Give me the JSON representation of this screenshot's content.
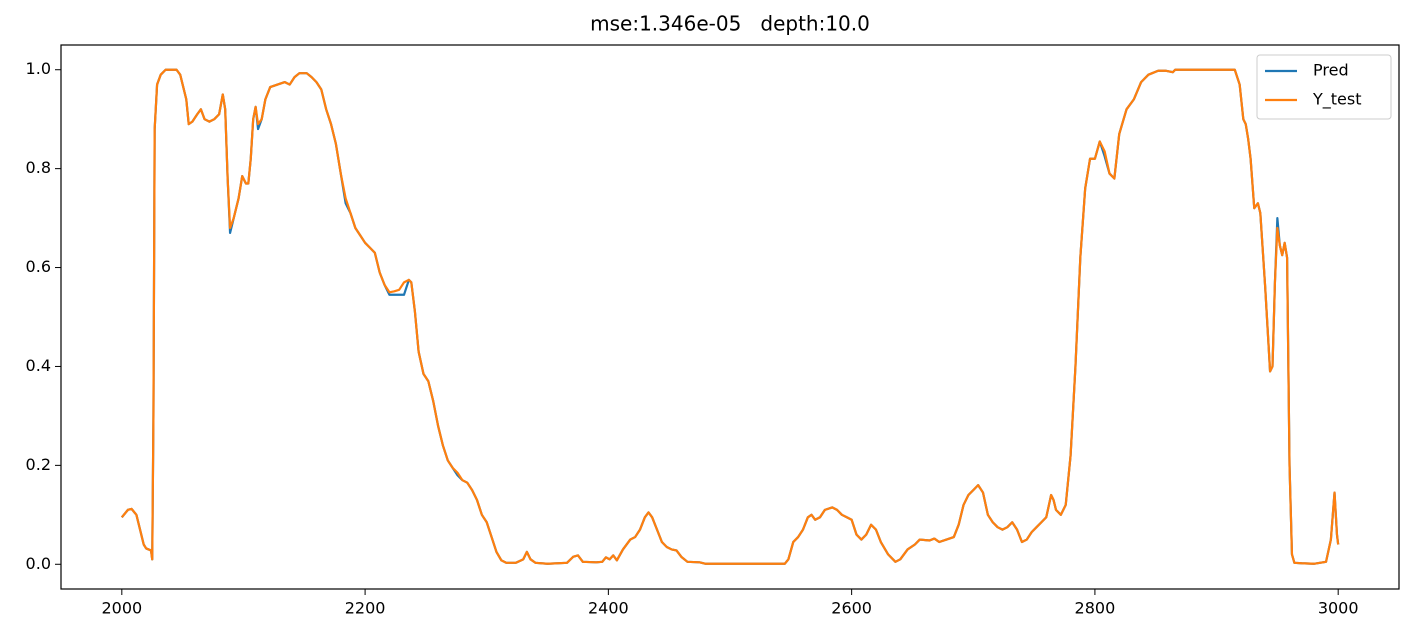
{
  "chart_data": {
    "type": "line",
    "title": "mse:1.346e-05   depth:10.0",
    "x": [
      2000,
      2005,
      2008,
      2012,
      2015,
      2018,
      2020,
      2024,
      2025,
      2026,
      2027,
      2029,
      2032,
      2036,
      2045,
      2048,
      2050,
      2053,
      2055,
      2058,
      2062,
      2065,
      2068,
      2072,
      2076,
      2080,
      2083,
      2085,
      2087,
      2089,
      2092,
      2096,
      2099,
      2102,
      2104,
      2106,
      2108,
      2110,
      2112,
      2115,
      2118,
      2122,
      2128,
      2134,
      2138,
      2142,
      2146,
      2152,
      2156,
      2160,
      2164,
      2168,
      2172,
      2176,
      2180,
      2184,
      2188,
      2192,
      2196,
      2200,
      2204,
      2208,
      2212,
      2216,
      2220,
      2224,
      2228,
      2232,
      2236,
      2238,
      2241,
      2244,
      2248,
      2252,
      2256,
      2260,
      2264,
      2268,
      2272,
      2276,
      2280,
      2284,
      2288,
      2292,
      2296,
      2300,
      2304,
      2308,
      2312,
      2316,
      2324,
      2330,
      2333,
      2336,
      2340,
      2350,
      2366,
      2371,
      2375,
      2379,
      2390,
      2395,
      2398,
      2401,
      2404,
      2407,
      2412,
      2418,
      2422,
      2426,
      2430,
      2433,
      2436,
      2440,
      2444,
      2448,
      2452,
      2456,
      2460,
      2465,
      2475,
      2480,
      2545,
      2548,
      2552,
      2556,
      2560,
      2564,
      2567,
      2570,
      2574,
      2578,
      2584,
      2588,
      2592,
      2596,
      2600,
      2604,
      2608,
      2612,
      2616,
      2620,
      2624,
      2630,
      2636,
      2640,
      2646,
      2652,
      2656,
      2664,
      2668,
      2672,
      2678,
      2684,
      2688,
      2692,
      2696,
      2700,
      2704,
      2708,
      2712,
      2716,
      2720,
      2724,
      2728,
      2732,
      2736,
      2740,
      2744,
      2748,
      2752,
      2756,
      2760,
      2764,
      2766,
      2768,
      2772,
      2776,
      2780,
      2784,
      2788,
      2792,
      2796,
      2800,
      2804,
      2808,
      2812,
      2816,
      2820,
      2826,
      2832,
      2838,
      2844,
      2852,
      2858,
      2864,
      2866,
      2915,
      2919,
      2922,
      2924,
      2926,
      2928,
      2931,
      2934,
      2936,
      2940,
      2944,
      2946,
      2948,
      2950,
      2952,
      2954,
      2956,
      2958,
      2960,
      2962,
      2964,
      2970,
      2980,
      2990,
      2994,
      2997,
      2999,
      3000
    ],
    "series": [
      {
        "name": "Pred",
        "color": "#1f77b4",
        "values": [
          0.095,
          0.11,
          0.112,
          0.1,
          0.07,
          0.04,
          0.032,
          0.028,
          0.01,
          0.3,
          0.88,
          0.97,
          0.99,
          1.0,
          1.0,
          0.99,
          0.97,
          0.94,
          0.89,
          0.895,
          0.91,
          0.92,
          0.9,
          0.895,
          0.9,
          0.91,
          0.95,
          0.92,
          0.78,
          0.67,
          0.7,
          0.74,
          0.785,
          0.77,
          0.77,
          0.82,
          0.9,
          0.925,
          0.88,
          0.9,
          0.94,
          0.965,
          0.97,
          0.975,
          0.97,
          0.985,
          0.993,
          0.993,
          0.985,
          0.975,
          0.96,
          0.92,
          0.89,
          0.85,
          0.79,
          0.73,
          0.71,
          0.68,
          0.665,
          0.65,
          0.64,
          0.63,
          0.59,
          0.565,
          0.545,
          0.545,
          0.545,
          0.545,
          0.575,
          0.57,
          0.51,
          0.43,
          0.385,
          0.37,
          0.33,
          0.28,
          0.24,
          0.21,
          0.195,
          0.18,
          0.17,
          0.165,
          0.15,
          0.13,
          0.1,
          0.085,
          0.055,
          0.025,
          0.008,
          0.003,
          0.003,
          0.01,
          0.025,
          0.01,
          0.003,
          0.001,
          0.003,
          0.015,
          0.018,
          0.005,
          0.004,
          0.005,
          0.014,
          0.01,
          0.018,
          0.008,
          0.03,
          0.05,
          0.055,
          0.07,
          0.095,
          0.105,
          0.095,
          0.07,
          0.045,
          0.035,
          0.03,
          0.028,
          0.015,
          0.005,
          0.004,
          0.001,
          0.001,
          0.01,
          0.045,
          0.055,
          0.07,
          0.095,
          0.1,
          0.09,
          0.095,
          0.11,
          0.115,
          0.11,
          0.1,
          0.095,
          0.09,
          0.06,
          0.05,
          0.06,
          0.08,
          0.07,
          0.045,
          0.02,
          0.005,
          0.01,
          0.03,
          0.04,
          0.05,
          0.048,
          0.052,
          0.045,
          0.05,
          0.055,
          0.08,
          0.12,
          0.14,
          0.15,
          0.16,
          0.145,
          0.1,
          0.085,
          0.075,
          0.07,
          0.075,
          0.085,
          0.07,
          0.045,
          0.05,
          0.065,
          0.075,
          0.085,
          0.095,
          0.14,
          0.13,
          0.11,
          0.1,
          0.12,
          0.22,
          0.4,
          0.62,
          0.76,
          0.82,
          0.82,
          0.855,
          0.825,
          0.79,
          0.78,
          0.87,
          0.92,
          0.94,
          0.975,
          0.99,
          0.998,
          0.998,
          0.995,
          1.0,
          1.0,
          0.97,
          0.9,
          0.89,
          0.86,
          0.82,
          0.72,
          0.73,
          0.71,
          0.56,
          0.39,
          0.4,
          0.57,
          0.7,
          0.645,
          0.625,
          0.65,
          0.62,
          0.2,
          0.02,
          0.003,
          0.002,
          0.001,
          0.005,
          0.05,
          0.145,
          0.06,
          0.04
        ]
      },
      {
        "name": "Y_test",
        "color": "#ff7f0e",
        "values": [
          0.095,
          0.11,
          0.112,
          0.1,
          0.07,
          0.04,
          0.032,
          0.028,
          0.01,
          0.3,
          0.88,
          0.97,
          0.99,
          1.0,
          1.0,
          0.99,
          0.97,
          0.94,
          0.89,
          0.895,
          0.91,
          0.92,
          0.9,
          0.895,
          0.9,
          0.91,
          0.95,
          0.92,
          0.78,
          0.68,
          0.7,
          0.74,
          0.785,
          0.77,
          0.77,
          0.82,
          0.9,
          0.925,
          0.89,
          0.9,
          0.94,
          0.965,
          0.97,
          0.975,
          0.97,
          0.985,
          0.993,
          0.993,
          0.985,
          0.975,
          0.96,
          0.92,
          0.89,
          0.85,
          0.79,
          0.74,
          0.71,
          0.68,
          0.665,
          0.65,
          0.64,
          0.63,
          0.59,
          0.565,
          0.55,
          0.552,
          0.555,
          0.57,
          0.575,
          0.57,
          0.51,
          0.43,
          0.385,
          0.37,
          0.33,
          0.28,
          0.24,
          0.21,
          0.195,
          0.185,
          0.17,
          0.165,
          0.15,
          0.13,
          0.1,
          0.085,
          0.055,
          0.025,
          0.008,
          0.003,
          0.003,
          0.01,
          0.025,
          0.01,
          0.003,
          0.001,
          0.003,
          0.015,
          0.018,
          0.005,
          0.004,
          0.005,
          0.014,
          0.01,
          0.018,
          0.008,
          0.03,
          0.05,
          0.055,
          0.07,
          0.095,
          0.105,
          0.095,
          0.07,
          0.045,
          0.035,
          0.03,
          0.028,
          0.015,
          0.005,
          0.004,
          0.001,
          0.001,
          0.01,
          0.045,
          0.055,
          0.07,
          0.095,
          0.1,
          0.09,
          0.095,
          0.11,
          0.115,
          0.11,
          0.1,
          0.095,
          0.09,
          0.06,
          0.05,
          0.06,
          0.08,
          0.07,
          0.045,
          0.02,
          0.005,
          0.01,
          0.03,
          0.04,
          0.05,
          0.048,
          0.052,
          0.045,
          0.05,
          0.055,
          0.08,
          0.12,
          0.14,
          0.15,
          0.16,
          0.145,
          0.1,
          0.085,
          0.075,
          0.07,
          0.075,
          0.085,
          0.07,
          0.045,
          0.05,
          0.065,
          0.075,
          0.085,
          0.095,
          0.14,
          0.13,
          0.11,
          0.1,
          0.12,
          0.22,
          0.4,
          0.62,
          0.76,
          0.82,
          0.82,
          0.855,
          0.835,
          0.79,
          0.78,
          0.87,
          0.92,
          0.94,
          0.975,
          0.99,
          0.998,
          0.998,
          0.995,
          1.0,
          1.0,
          0.97,
          0.9,
          0.89,
          0.86,
          0.82,
          0.72,
          0.73,
          0.71,
          0.56,
          0.39,
          0.4,
          0.57,
          0.68,
          0.645,
          0.625,
          0.65,
          0.62,
          0.2,
          0.02,
          0.003,
          0.002,
          0.001,
          0.005,
          0.05,
          0.145,
          0.06,
          0.04
        ]
      }
    ],
    "xlim": [
      1950,
      3050
    ],
    "xticks": [
      2000,
      2200,
      2400,
      2600,
      2800,
      3000
    ],
    "ylim": [
      -0.05,
      1.05
    ],
    "yticks": [
      {
        "value": 0,
        "label": "0.0"
      },
      0.2,
      0.4,
      0.6,
      0.8,
      {
        "value": 1,
        "label": "1.0"
      }
    ],
    "legend": "upper right",
    "grid": false
  }
}
